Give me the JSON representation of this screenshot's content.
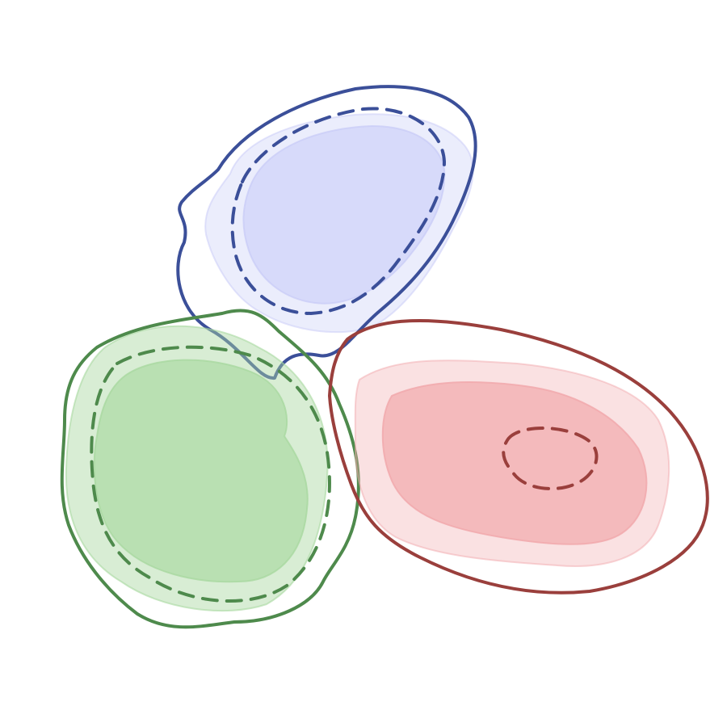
{
  "chart_data": {
    "type": "contour",
    "axes_visible": false,
    "grid": false,
    "legend": "none",
    "series": [
      {
        "color_fill": "#c7caf7",
        "color_line": "#3b4f99",
        "center": [
          0.0,
          1.0
        ],
        "levels": [
          {
            "kind": "filled",
            "opacity": 0.35
          },
          {
            "kind": "filled",
            "opacity": 0.55
          },
          {
            "kind": "outline",
            "style": "dashed"
          },
          {
            "kind": "outline",
            "style": "solid"
          }
        ]
      },
      {
        "color_fill": "#a9d8a0",
        "color_line": "#4e8a4c",
        "center": [
          -1.0,
          -0.6
        ],
        "levels": [
          {
            "kind": "filled",
            "opacity": 0.45
          },
          {
            "kind": "filled",
            "opacity": 0.65
          },
          {
            "kind": "outline",
            "style": "dashed"
          },
          {
            "kind": "outline",
            "style": "solid"
          }
        ]
      },
      {
        "color_fill": "#f1a9ad",
        "color_line": "#9a3f3c",
        "center": [
          1.2,
          -0.7
        ],
        "levels": [
          {
            "kind": "filled",
            "opacity": 0.35
          },
          {
            "kind": "filled",
            "opacity": 0.7
          },
          {
            "kind": "outline",
            "style": "dashed"
          },
          {
            "kind": "outline",
            "style": "solid"
          }
        ]
      }
    ]
  }
}
